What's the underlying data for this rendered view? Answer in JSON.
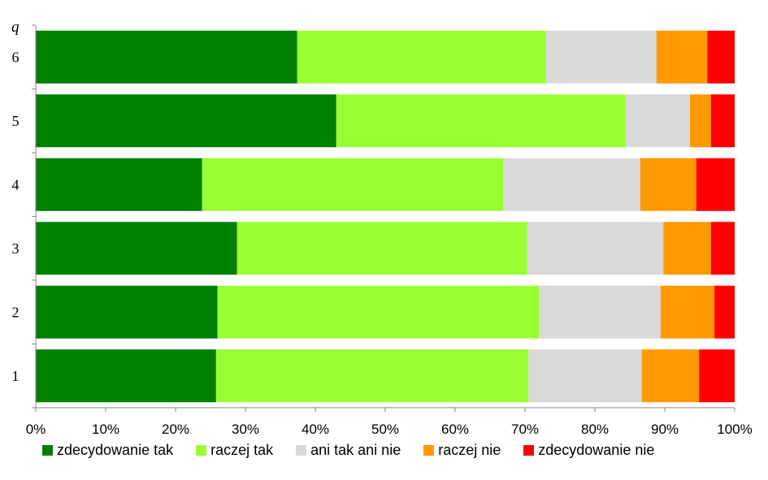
{
  "chart_data": {
    "type": "bar",
    "orientation": "horizontal",
    "stacked": "percent",
    "y_axis_label": "q",
    "categories": [
      "1",
      "2",
      "3",
      "4",
      "5",
      "6"
    ],
    "series": [
      {
        "name": "zdecydowanie tak",
        "color": "#008000",
        "values": [
          25.8,
          26.0,
          28.8,
          23.8,
          43.0,
          37.4
        ]
      },
      {
        "name": "raczej tak",
        "color": "#99ff33",
        "values": [
          44.7,
          46.0,
          41.5,
          43.1,
          41.4,
          35.6
        ]
      },
      {
        "name": "ani tak ani nie",
        "color": "#d9d9d9",
        "values": [
          16.2,
          17.4,
          19.5,
          19.6,
          9.2,
          15.8
        ]
      },
      {
        "name": "raczej nie",
        "color": "#ff9900",
        "values": [
          8.2,
          7.7,
          6.8,
          8.0,
          3.0,
          7.3
        ]
      },
      {
        "name": "zdecydowanie nie",
        "color": "#ff0000",
        "values": [
          5.1,
          2.9,
          3.4,
          5.5,
          3.4,
          3.9
        ]
      }
    ],
    "x_ticks": [
      "0%",
      "10%",
      "20%",
      "30%",
      "40%",
      "50%",
      "60%",
      "70%",
      "80%",
      "90%",
      "100%"
    ],
    "xlim": [
      0,
      100
    ],
    "grid": false,
    "legend_position": "bottom"
  }
}
